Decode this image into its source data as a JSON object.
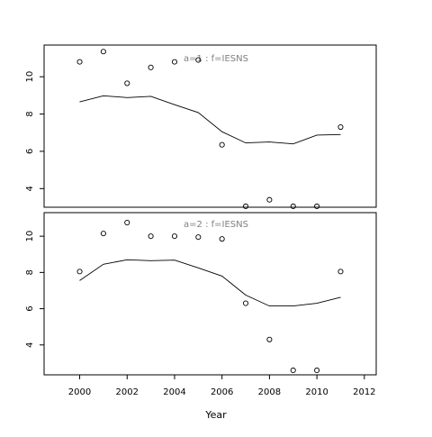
{
  "chart_data": {
    "type": "scatter",
    "xlabel": "Year",
    "x_axis": {
      "range": [
        1998.5,
        2012.5
      ],
      "ticks": [
        2000,
        2002,
        2004,
        2006,
        2008,
        2010,
        2012
      ]
    },
    "panels": [
      {
        "title": "a=1  :  f=IESNS",
        "y_axis": {
          "range": [
            3.0,
            11.7
          ],
          "ticks": [
            4,
            6,
            8,
            10
          ]
        },
        "series": [
          {
            "kind": "points",
            "x": [
              2000,
              2001,
              2002,
              2003,
              2004,
              2005,
              2006,
              2007,
              2008,
              2009,
              2010,
              2011
            ],
            "y": [
              10.8,
              11.35,
              9.65,
              10.5,
              10.8,
              10.9,
              6.35,
              3.05,
              3.4,
              3.05,
              3.05,
              7.3
            ]
          },
          {
            "kind": "line",
            "x": [
              2000,
              2001,
              2002,
              2003,
              2004,
              2005,
              2006,
              2007,
              2008,
              2009,
              2010,
              2011
            ],
            "y": [
              8.65,
              8.98,
              8.88,
              8.95,
              8.5,
              8.08,
              7.05,
              6.45,
              6.5,
              6.4,
              6.87,
              6.9
            ]
          }
        ]
      },
      {
        "title": "a=2  :  f=IESNS",
        "y_axis": {
          "range": [
            2.35,
            11.3
          ],
          "ticks": [
            4,
            6,
            8,
            10
          ]
        },
        "series": [
          {
            "kind": "points",
            "x": [
              2000,
              2001,
              2002,
              2003,
              2004,
              2005,
              2006,
              2007,
              2008,
              2009,
              2010,
              2011
            ],
            "y": [
              8.05,
              10.15,
              10.75,
              10.0,
              10.0,
              9.95,
              9.85,
              6.3,
              4.3,
              2.6,
              2.6,
              8.05
            ]
          },
          {
            "kind": "line",
            "x": [
              2000,
              2001,
              2002,
              2003,
              2004,
              2005,
              2006,
              2007,
              2008,
              2009,
              2010,
              2011
            ],
            "y": [
              7.55,
              8.45,
              8.7,
              8.65,
              8.68,
              8.25,
              7.8,
              6.75,
              6.15,
              6.15,
              6.3,
              6.63
            ]
          }
        ]
      }
    ]
  }
}
